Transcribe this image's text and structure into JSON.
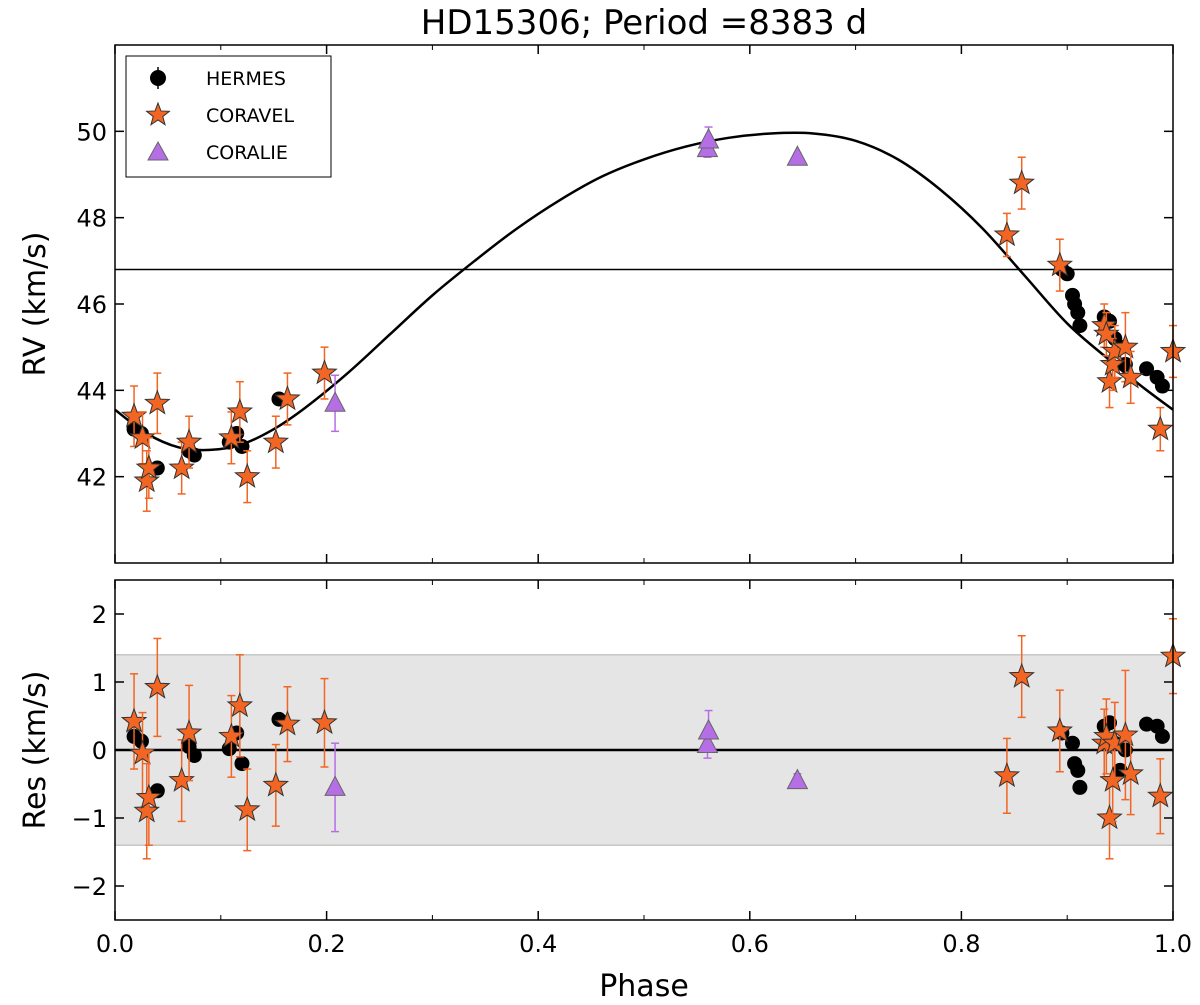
{
  "chart_data": {
    "type": "scatter",
    "title": "HD15306; Period =8383 d",
    "xlabel": "Phase",
    "xlim": [
      0.0,
      1.0
    ],
    "xticks": [
      "0.0",
      "0.2",
      "0.4",
      "0.6",
      "0.8",
      "1.0"
    ],
    "legend_position": "top-left",
    "colors": {
      "HERMES": "#000000",
      "CORAVEL": "#f26522",
      "CORALIE": "#b66ee6",
      "band": "#e5e5e5"
    },
    "top_panel": {
      "ylabel": "RV (km/s)",
      "ylim": [
        40.0,
        52.0
      ],
      "yticks": [
        "42",
        "44",
        "46",
        "48",
        "50"
      ],
      "systemic_velocity": 46.8,
      "orbit_model": {
        "phase": [
          0.0,
          0.03,
          0.06,
          0.09,
          0.12,
          0.15,
          0.18,
          0.22,
          0.26,
          0.3,
          0.34,
          0.38,
          0.42,
          0.46,
          0.5,
          0.54,
          0.58,
          0.62,
          0.66,
          0.7,
          0.74,
          0.78,
          0.82,
          0.86,
          0.9,
          0.94,
          0.97,
          1.0
        ],
        "rv": [
          43.55,
          43.0,
          42.68,
          42.62,
          42.75,
          43.1,
          43.6,
          44.4,
          45.3,
          46.2,
          47.0,
          47.75,
          48.4,
          48.95,
          49.35,
          49.65,
          49.85,
          49.95,
          49.95,
          49.78,
          49.35,
          48.65,
          47.75,
          46.65,
          45.55,
          44.7,
          44.1,
          43.55
        ]
      },
      "series": [
        {
          "name": "HERMES",
          "phase": [
            0.018,
            0.025,
            0.04,
            0.07,
            0.075,
            0.108,
            0.115,
            0.12,
            0.155,
            0.895,
            0.9,
            0.905,
            0.907,
            0.91,
            0.912,
            0.935,
            0.94,
            0.945,
            0.95,
            0.955,
            0.975,
            0.985,
            0.99
          ],
          "rv": [
            43.1,
            43.0,
            42.2,
            42.6,
            42.5,
            42.8,
            43.0,
            42.7,
            43.8,
            46.8,
            46.7,
            46.2,
            46.0,
            45.8,
            45.5,
            45.7,
            45.6,
            45.2,
            45.0,
            44.6,
            44.5,
            44.3,
            44.1
          ],
          "err": [
            0.1,
            0.1,
            0.1,
            0.1,
            0.1,
            0.1,
            0.1,
            0.1,
            0.1,
            0.1,
            0.1,
            0.1,
            0.1,
            0.1,
            0.1,
            0.1,
            0.1,
            0.1,
            0.1,
            0.1,
            0.1,
            0.1,
            0.1
          ]
        },
        {
          "name": "CORAVEL",
          "phase": [
            0.018,
            0.026,
            0.03,
            0.032,
            0.04,
            0.063,
            0.07,
            0.11,
            0.118,
            0.125,
            0.152,
            0.163,
            0.198,
            0.843,
            0.857,
            0.893,
            0.935,
            0.937,
            0.94,
            0.943,
            0.945,
            0.955,
            0.96,
            0.988,
            1.0
          ],
          "rv": [
            43.4,
            42.9,
            41.9,
            42.2,
            43.7,
            42.2,
            42.8,
            42.9,
            43.5,
            42.0,
            42.8,
            43.8,
            44.4,
            47.6,
            48.8,
            46.9,
            45.5,
            45.3,
            44.2,
            44.6,
            44.9,
            45.0,
            44.3,
            43.1,
            44.9
          ],
          "err": [
            0.7,
            0.6,
            0.7,
            0.7,
            0.7,
            0.6,
            0.6,
            0.6,
            0.7,
            0.6,
            0.6,
            0.6,
            0.6,
            0.5,
            0.6,
            0.6,
            0.5,
            0.5,
            0.6,
            0.6,
            0.6,
            0.8,
            0.6,
            0.5,
            0.6
          ]
        },
        {
          "name": "CORALIE",
          "phase": [
            0.208,
            0.56,
            0.561,
            0.645
          ],
          "rv": [
            43.7,
            49.6,
            49.8,
            49.4
          ],
          "err": [
            0.65,
            0.2,
            0.3,
            0.1
          ]
        }
      ]
    },
    "bottom_panel": {
      "ylabel": "Res (km/s)",
      "ylim": [
        -2.5,
        2.5
      ],
      "yticks": [
        "−2",
        "−1",
        "0",
        "1",
        "2"
      ],
      "shaded_band": [
        -1.4,
        1.4
      ],
      "series": [
        {
          "name": "HERMES",
          "phase": [
            0.018,
            0.025,
            0.04,
            0.07,
            0.075,
            0.108,
            0.115,
            0.12,
            0.155,
            0.895,
            0.905,
            0.907,
            0.91,
            0.912,
            0.935,
            0.94,
            0.945,
            0.95,
            0.955,
            0.975,
            0.985,
            0.99
          ],
          "res": [
            0.2,
            0.13,
            -0.6,
            0.05,
            -0.08,
            0.02,
            0.25,
            -0.2,
            0.45,
            0.25,
            0.1,
            -0.2,
            -0.3,
            -0.55,
            0.35,
            0.4,
            0.1,
            -0.3,
            0.0,
            0.38,
            0.35,
            0.2
          ],
          "err": [
            0.1,
            0.1,
            0.1,
            0.1,
            0.1,
            0.1,
            0.1,
            0.1,
            0.1,
            0.1,
            0.1,
            0.1,
            0.1,
            0.1,
            0.1,
            0.1,
            0.1,
            0.1,
            0.1,
            0.1,
            0.1,
            0.1
          ]
        },
        {
          "name": "CORAVEL",
          "phase": [
            0.018,
            0.026,
            0.03,
            0.032,
            0.04,
            0.063,
            0.07,
            0.11,
            0.118,
            0.125,
            0.152,
            0.163,
            0.198,
            0.843,
            0.857,
            0.893,
            0.935,
            0.937,
            0.94,
            0.943,
            0.945,
            0.955,
            0.96,
            0.988,
            1.0
          ],
          "res": [
            0.42,
            -0.05,
            -0.9,
            -0.7,
            0.92,
            -0.45,
            0.25,
            0.2,
            0.65,
            -0.88,
            -0.52,
            0.38,
            0.4,
            -0.38,
            1.08,
            0.28,
            0.1,
            0.2,
            -1.0,
            -0.45,
            0.1,
            0.22,
            -0.35,
            -0.68,
            1.38
          ],
          "err": [
            0.7,
            0.6,
            0.7,
            0.7,
            0.72,
            0.6,
            0.7,
            0.6,
            0.75,
            0.6,
            0.6,
            0.55,
            0.65,
            0.55,
            0.6,
            0.6,
            0.5,
            0.55,
            0.6,
            0.6,
            0.6,
            0.95,
            0.6,
            0.55,
            0.55
          ]
        },
        {
          "name": "CORALIE",
          "phase": [
            0.208,
            0.56,
            0.561,
            0.645
          ],
          "res": [
            -0.55,
            0.08,
            0.28,
            -0.45
          ],
          "err": [
            0.65,
            0.2,
            0.3,
            0.1
          ]
        }
      ]
    }
  }
}
